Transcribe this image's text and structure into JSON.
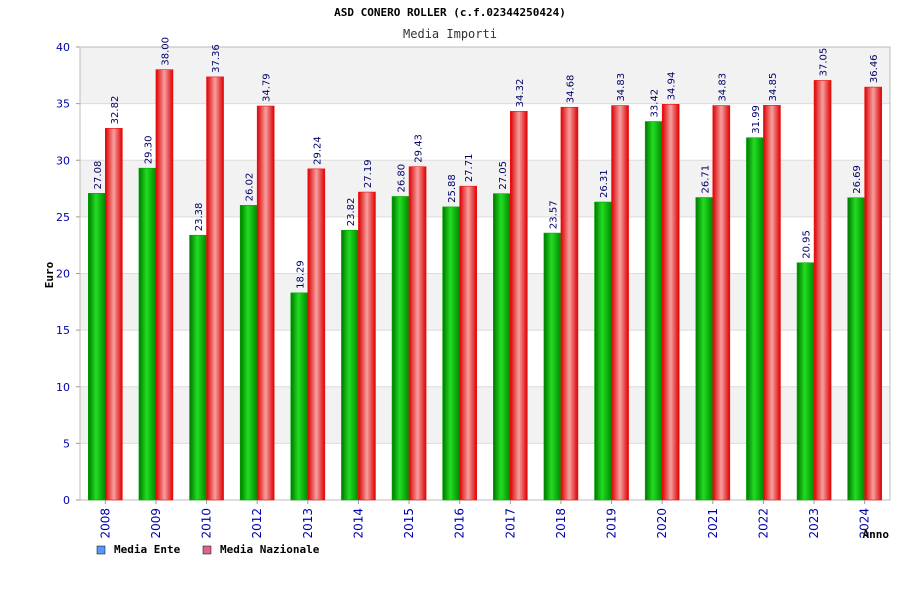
{
  "chart_data": {
    "type": "bar",
    "title": "ASD CONERO ROLLER (c.f.02344250424)",
    "subtitle": "Media Importi",
    "xlabel": "Anno",
    "ylabel": "Euro",
    "ylim": [
      0,
      40
    ],
    "yticks": [
      "0",
      "5",
      "10",
      "15",
      "20",
      "25",
      "30",
      "35",
      "40"
    ],
    "grid": true,
    "legend_position": "bottom-left",
    "categories": [
      "2008",
      "2009",
      "2010",
      "2012",
      "2013",
      "2014",
      "2015",
      "2016",
      "2017",
      "2018",
      "2019",
      "2020",
      "2021",
      "2022",
      "2023",
      "2024"
    ],
    "series": [
      {
        "name": "Media Ente",
        "color": "#00aa00",
        "legend_color": "#5599ff",
        "values": [
          27.08,
          29.3,
          23.38,
          26.02,
          18.29,
          23.82,
          26.8,
          25.88,
          27.05,
          23.57,
          26.31,
          33.42,
          26.71,
          31.99,
          20.95,
          26.69
        ],
        "labels": [
          "27.08",
          "29.30",
          "23.38",
          "26.02",
          "18.29",
          "23.82",
          "26.80",
          "25.88",
          "27.05",
          "23.57",
          "26.31",
          "33.42",
          "26.71",
          "31.99",
          "20.95",
          "26.69"
        ]
      },
      {
        "name": "Media Nazionale",
        "color": "#ee1111",
        "legend_color": "#dd6688",
        "values": [
          32.82,
          38.0,
          37.36,
          34.79,
          29.24,
          27.19,
          29.43,
          27.71,
          34.32,
          34.68,
          34.83,
          34.94,
          34.83,
          34.85,
          37.05,
          36.46
        ],
        "labels": [
          "32.82",
          "38.00",
          "37.36",
          "34.79",
          "29.24",
          "27.19",
          "29.43",
          "27.71",
          "34.32",
          "34.68",
          "34.83",
          "34.94",
          "34.83",
          "34.85",
          "37.05",
          "36.46"
        ]
      }
    ]
  }
}
